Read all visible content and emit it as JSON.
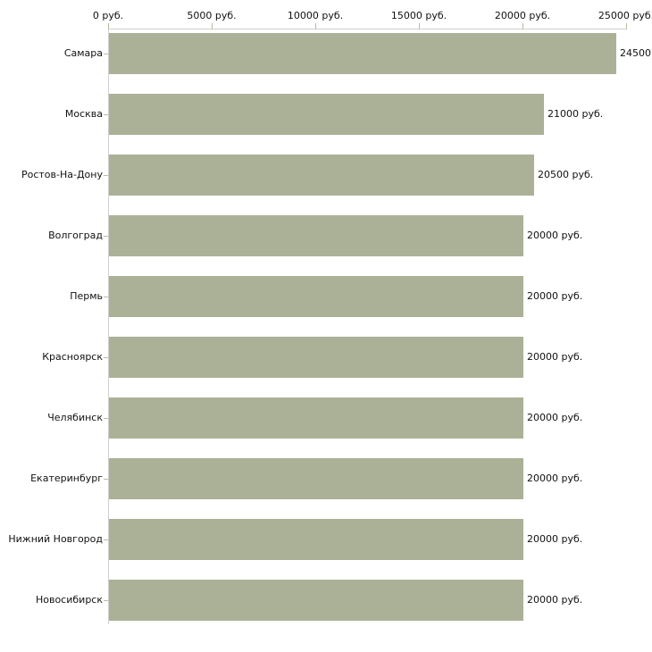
{
  "chart_data": {
    "type": "bar",
    "orientation": "horizontal",
    "title": "",
    "unit": "руб.",
    "categories": [
      "Самара",
      "Москва",
      "Ростов-На-Дону",
      "Волгоград",
      "Пермь",
      "Красноярск",
      "Челябинск",
      "Екатеринбург",
      "Нижний Новгород",
      "Новосибирск"
    ],
    "values": [
      24500,
      21000,
      20500,
      20000,
      20000,
      20000,
      20000,
      20000,
      20000,
      20000
    ],
    "x_axis": {
      "position": "top",
      "min": 0,
      "max": 25000,
      "tick_values": [
        0,
        5000,
        10000,
        15000,
        20000,
        25000
      ],
      "tick_labels": [
        "0 руб.",
        "5000 руб.",
        "10000 руб.",
        "15000 руб.",
        "20000 руб.",
        "25000 руб."
      ]
    },
    "grid": false,
    "legend": null,
    "colors": {
      "bar": "#abb197",
      "axis_line": "#d0d0d0",
      "tick_mark": "#b9bd9c",
      "text": "#111111",
      "background": "#ffffff"
    }
  }
}
